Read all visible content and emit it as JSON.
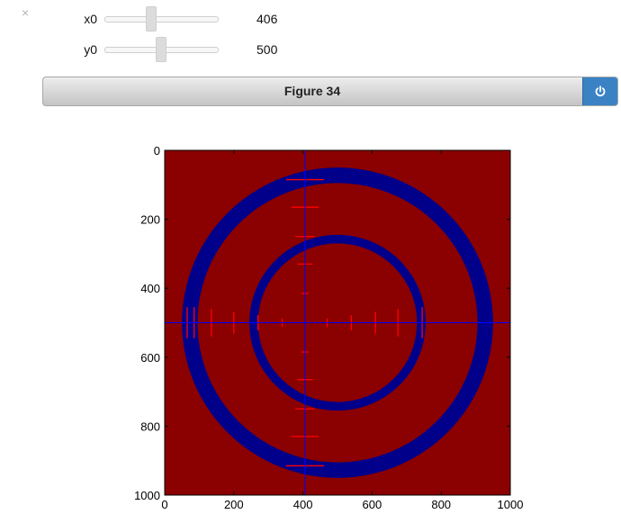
{
  "close_label": "×",
  "sliders": [
    {
      "label": "x0",
      "value": "406",
      "position": 0.406
    },
    {
      "label": "y0",
      "value": "500",
      "position": 0.5
    }
  ],
  "figure": {
    "title": "Figure 34",
    "power_icon": "power-icon",
    "accent_color": "#3b82c4"
  },
  "chart_data": {
    "type": "heatmap",
    "xlim": [
      0,
      1000
    ],
    "ylim": [
      1000,
      0
    ],
    "x_ticks": [
      "0",
      "200",
      "400",
      "600",
      "800",
      "1000"
    ],
    "y_ticks": [
      "0",
      "200",
      "400",
      "600",
      "800",
      "1000"
    ],
    "background_color": "#8b0000",
    "ring_color": "#00008b",
    "rings": [
      {
        "cx": 500,
        "cy": 500,
        "outer_r": 450,
        "inner_r": 405
      },
      {
        "cx": 500,
        "cy": 500,
        "outer_r": 255,
        "inner_r": 230
      }
    ],
    "crosshair": {
      "x": 406,
      "y": 500,
      "color": "#0000ff"
    },
    "tick_marks_color": "#ff0000",
    "horizontal_ticks": [
      {
        "x": 65,
        "half_len": 45
      },
      {
        "x": 85,
        "half_len": 45
      },
      {
        "x": 135,
        "half_len": 40
      },
      {
        "x": 200,
        "half_len": 32
      },
      {
        "x": 270,
        "half_len": 22
      },
      {
        "x": 340,
        "half_len": 12
      },
      {
        "x": 470,
        "half_len": 12
      },
      {
        "x": 540,
        "half_len": 22
      },
      {
        "x": 610,
        "half_len": 32
      },
      {
        "x": 675,
        "half_len": 40
      },
      {
        "x": 745,
        "half_len": 45
      }
    ],
    "vertical_ticks": [
      {
        "y": 85,
        "half_len": 55
      },
      {
        "y": 165,
        "half_len": 40
      },
      {
        "y": 250,
        "half_len": 28
      },
      {
        "y": 330,
        "half_len": 22
      },
      {
        "y": 415,
        "half_len": 10
      },
      {
        "y": 585,
        "half_len": 10
      },
      {
        "y": 665,
        "half_len": 22
      },
      {
        "y": 750,
        "half_len": 28
      },
      {
        "y": 830,
        "half_len": 40
      },
      {
        "y": 915,
        "half_len": 55
      }
    ]
  }
}
